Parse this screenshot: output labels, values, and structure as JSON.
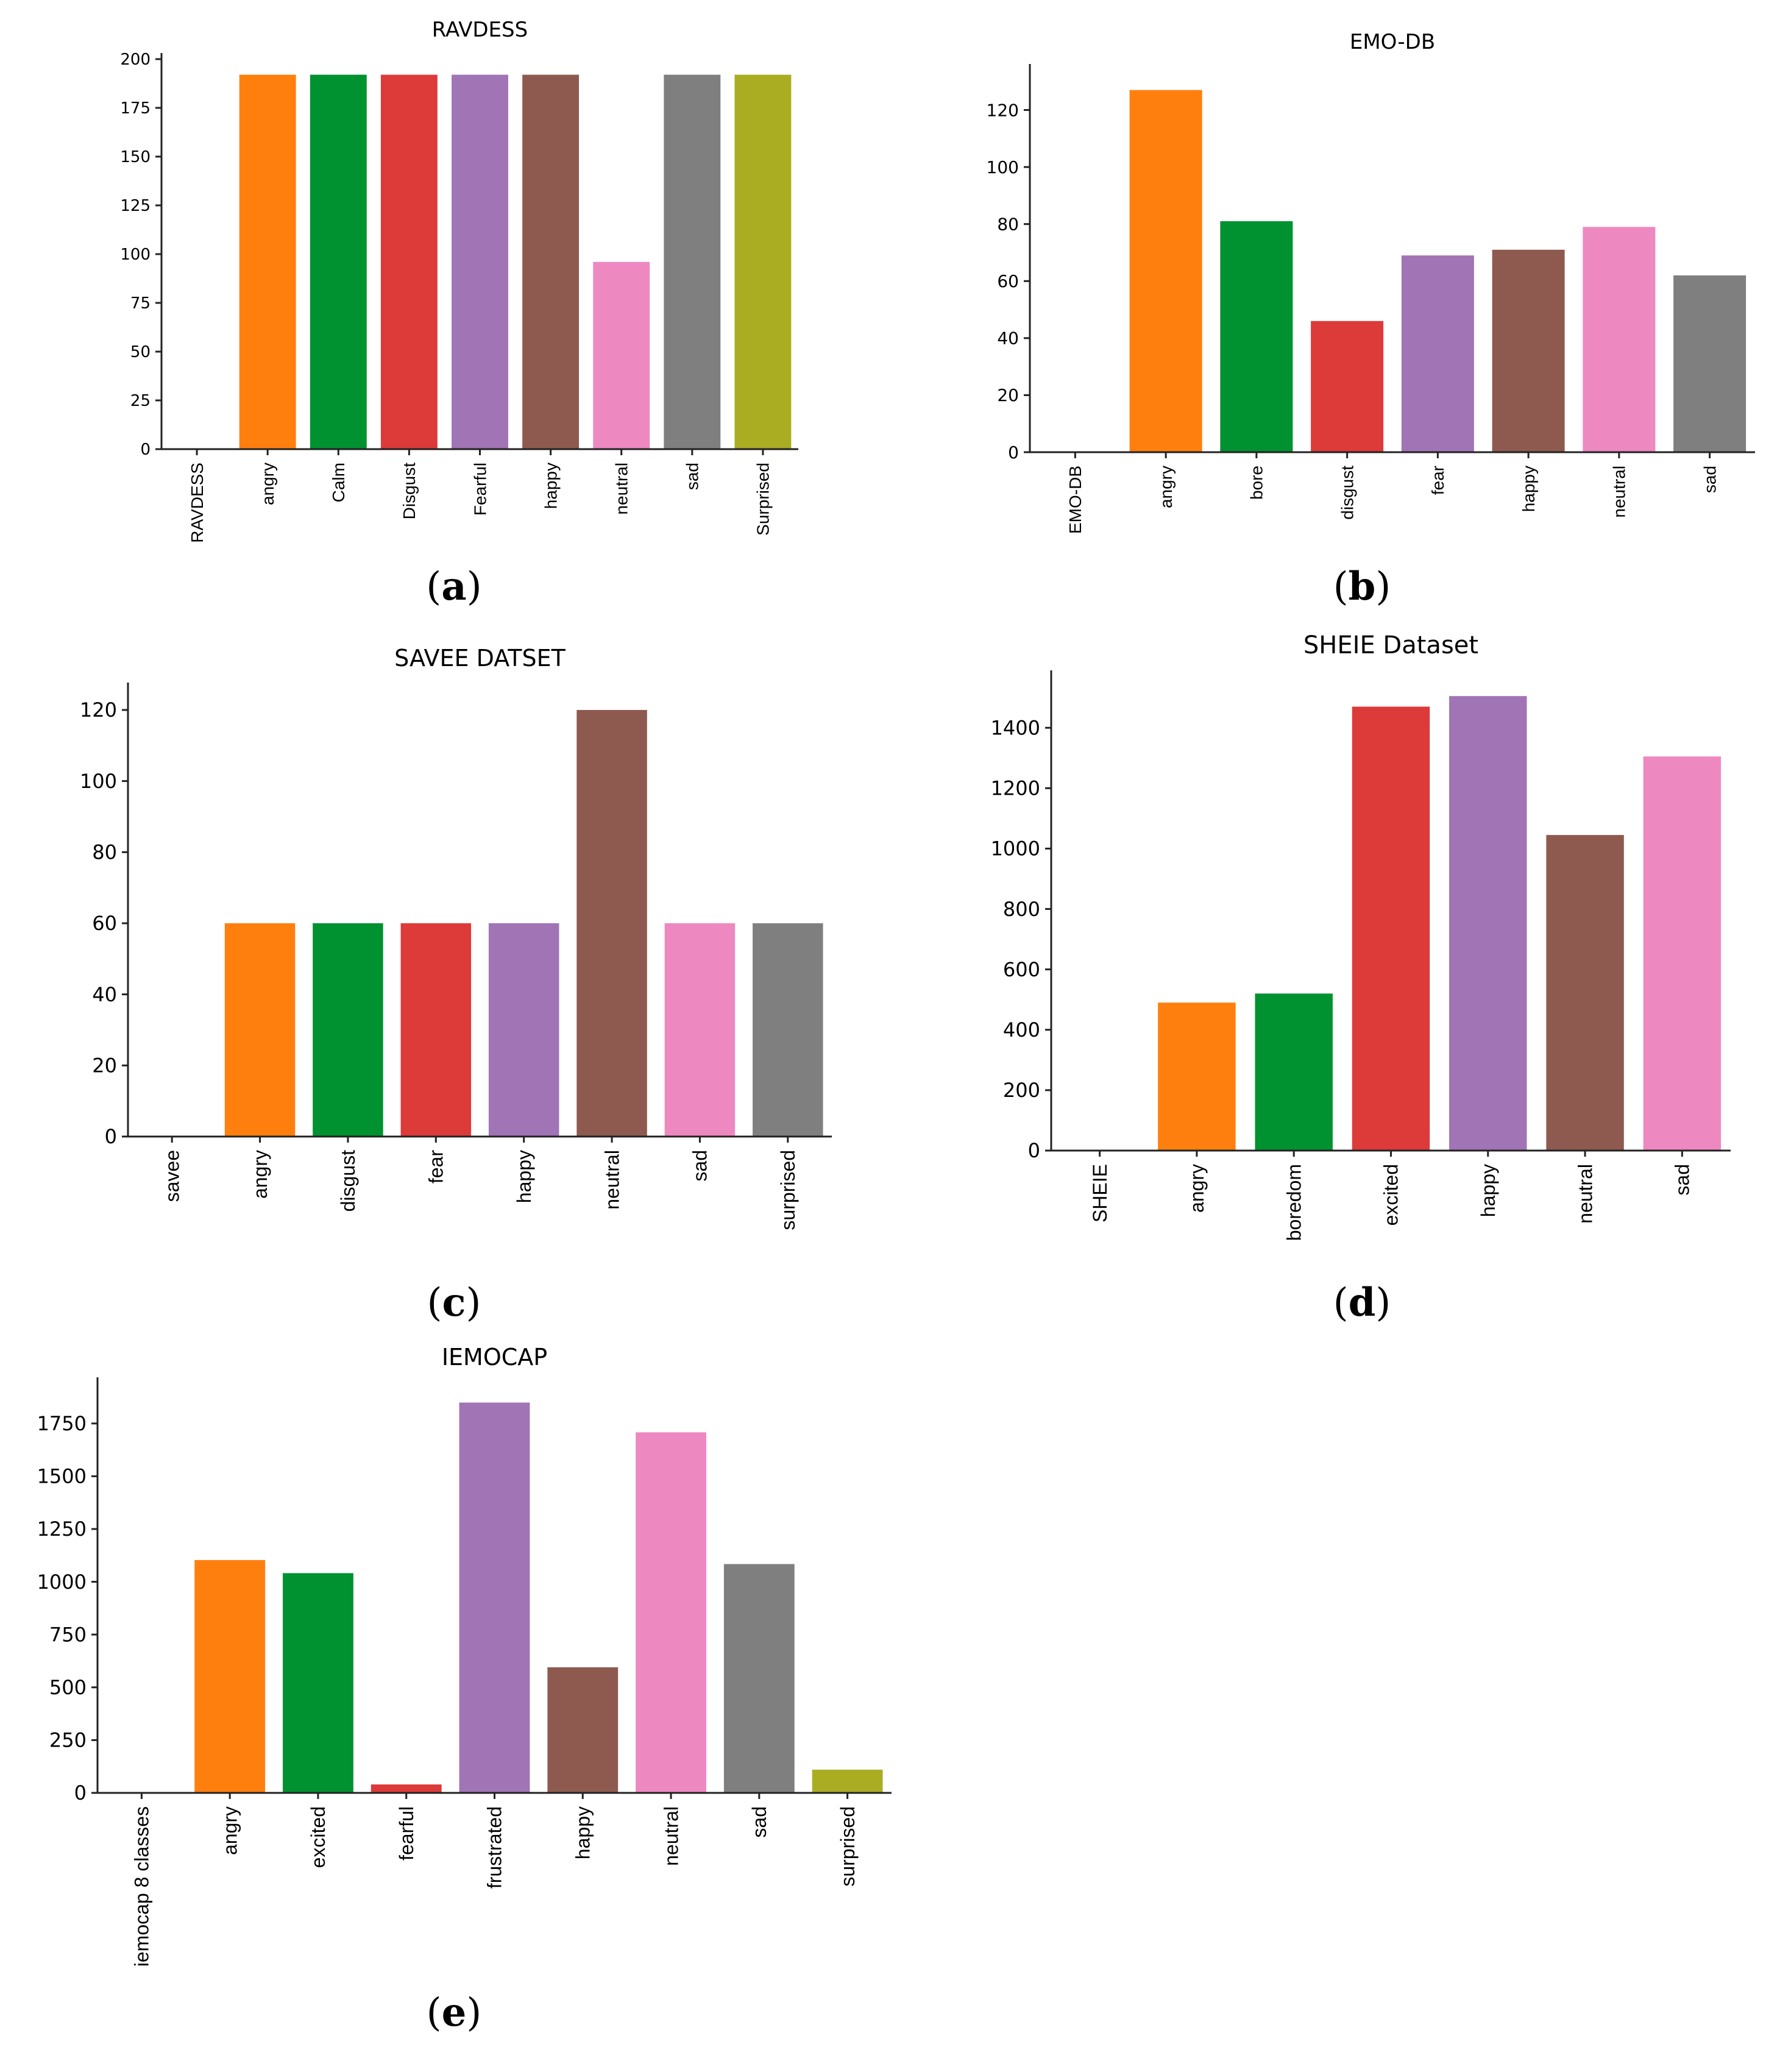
{
  "colors": [
    "#ffffff",
    "#ff7f0e",
    "#009130",
    "#dd3a3a",
    "#a074b5",
    "#8e5a50",
    "#ee88c1",
    "#7f7f7f",
    "#aaad22"
  ],
  "captions": {
    "a": {
      "open": "(",
      "letter": "a",
      "close": ")"
    },
    "b": {
      "open": "(",
      "letter": "b",
      "close": ")"
    },
    "c": {
      "open": "(",
      "letter": "c",
      "close": ")"
    },
    "d": {
      "open": "(",
      "letter": "d",
      "close": ")"
    },
    "e": {
      "open": "(",
      "letter": "e",
      "close": ")"
    }
  },
  "chart_data": [
    {
      "id": "a",
      "type": "bar",
      "title": "RAVDESS",
      "categories": [
        "RAVDESS",
        "angry",
        "Calm",
        "Disgust",
        "Fearful",
        "happy",
        "neutral",
        "sad",
        "Surprised"
      ],
      "values": [
        0,
        192,
        192,
        192,
        192,
        192,
        96,
        192,
        192
      ],
      "ylim": [
        0,
        200
      ],
      "yticks": [
        0,
        25,
        50,
        75,
        100,
        125,
        150,
        175,
        200
      ]
    },
    {
      "id": "b",
      "type": "bar",
      "title": "EMO-DB",
      "categories": [
        "EMO-DB",
        "angry",
        "bore",
        "disgust",
        "fear",
        "happy",
        "neutral",
        "sad"
      ],
      "values": [
        0,
        127,
        81,
        46,
        69,
        71,
        79,
        62
      ],
      "ylim": [
        0,
        134
      ],
      "yticks": [
        0,
        20,
        40,
        60,
        80,
        100,
        120
      ]
    },
    {
      "id": "c",
      "type": "bar",
      "title": "SAVEE DATSET",
      "categories": [
        "savee",
        "angry",
        "disgust",
        "fear",
        "happy",
        "neutral",
        "sad",
        "surprised"
      ],
      "values": [
        0,
        60,
        60,
        60,
        60,
        120,
        60,
        60
      ],
      "ylim": [
        0,
        126
      ],
      "yticks": [
        0,
        20,
        40,
        60,
        80,
        100,
        120
      ]
    },
    {
      "id": "d",
      "type": "bar",
      "title": "SHEIE Dataset",
      "categories": [
        "SHEIE",
        "angry",
        "boredom",
        "excited",
        "happy",
        "neutral",
        "sad"
      ],
      "values": [
        0,
        490,
        520,
        1470,
        1505,
        1045,
        1305
      ],
      "ylim": [
        0,
        1570
      ],
      "yticks": [
        0,
        200,
        400,
        600,
        800,
        1000,
        1200,
        1400
      ]
    },
    {
      "id": "e",
      "type": "bar",
      "title": "IEMOCAP",
      "categories": [
        "iemocap 8 classes",
        "angry",
        "excited",
        "fearful",
        "frustrated",
        "happy",
        "neutral",
        "sad",
        "surprised"
      ],
      "values": [
        0,
        1103,
        1041,
        40,
        1849,
        595,
        1708,
        1084,
        110
      ],
      "ylim": [
        0,
        1940
      ],
      "yticks": [
        0,
        250,
        500,
        750,
        1000,
        1250,
        1500,
        1750
      ]
    }
  ]
}
